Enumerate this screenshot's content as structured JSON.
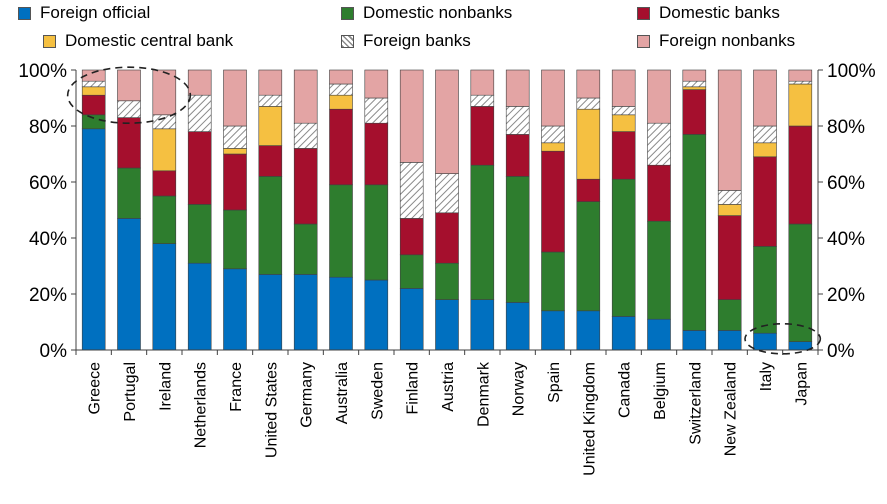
{
  "chart_data": {
    "type": "bar",
    "stacked": true,
    "categories": [
      "Greece",
      "Portugal",
      "Ireland",
      "Netherlands",
      "France",
      "United States",
      "Germany",
      "Australia",
      "Sweden",
      "Finland",
      "Austria",
      "Denmark",
      "Norway",
      "Spain",
      "United Kingdom",
      "Canada",
      "Belgium",
      "Switzerland",
      "New Zealand",
      "Italy",
      "Japan"
    ],
    "series": [
      {
        "name": "Foreign official",
        "color": "#0070C0",
        "pattern": "solid",
        "values": [
          79,
          47,
          38,
          31,
          29,
          27,
          27,
          26,
          25,
          22,
          18,
          18,
          17,
          14,
          14,
          12,
          11,
          7,
          7,
          6,
          3
        ]
      },
      {
        "name": "Domestic nonbanks",
        "color": "#2E7D2E",
        "pattern": "solid",
        "values": [
          5,
          18,
          17,
          21,
          21,
          35,
          18,
          33,
          34,
          12,
          13,
          48,
          45,
          21,
          39,
          49,
          35,
          70,
          11,
          31,
          42
        ]
      },
      {
        "name": "Domestic banks",
        "color": "#A50F2D",
        "pattern": "solid",
        "values": [
          7,
          18,
          9,
          26,
          20,
          11,
          27,
          27,
          22,
          13,
          18,
          21,
          15,
          36,
          8,
          17,
          20,
          16,
          30,
          32,
          35
        ]
      },
      {
        "name": "Domestic central bank",
        "color": "#F5C041",
        "pattern": "solid",
        "values": [
          3,
          0,
          15,
          0,
          2,
          14,
          0,
          5,
          0,
          0,
          0,
          0,
          0,
          3,
          25,
          6,
          0,
          1,
          4,
          5,
          15
        ]
      },
      {
        "name": "Foreign banks",
        "color": "#ffffff",
        "pattern": "hatch",
        "values": [
          2,
          6,
          5,
          13,
          8,
          4,
          9,
          4,
          9,
          20,
          14,
          4,
          10,
          6,
          4,
          3,
          15,
          2,
          5,
          6,
          1
        ]
      },
      {
        "name": "Foreign nonbanks",
        "color": "#E3A4A4",
        "pattern": "solid",
        "values": [
          4,
          11,
          16,
          9,
          20,
          9,
          19,
          5,
          10,
          33,
          37,
          9,
          13,
          20,
          10,
          13,
          19,
          4,
          43,
          20,
          4
        ]
      }
    ],
    "yticks": [
      "0%",
      "20%",
      "40%",
      "60%",
      "80%",
      "100%"
    ],
    "ylim": [
      0,
      100
    ],
    "legend_position": "top",
    "grid": false,
    "annotations": [
      "dashed circle around Greece, Portugal and Ireland tops",
      "dashed circle around Italy and Japan bottoms"
    ]
  }
}
